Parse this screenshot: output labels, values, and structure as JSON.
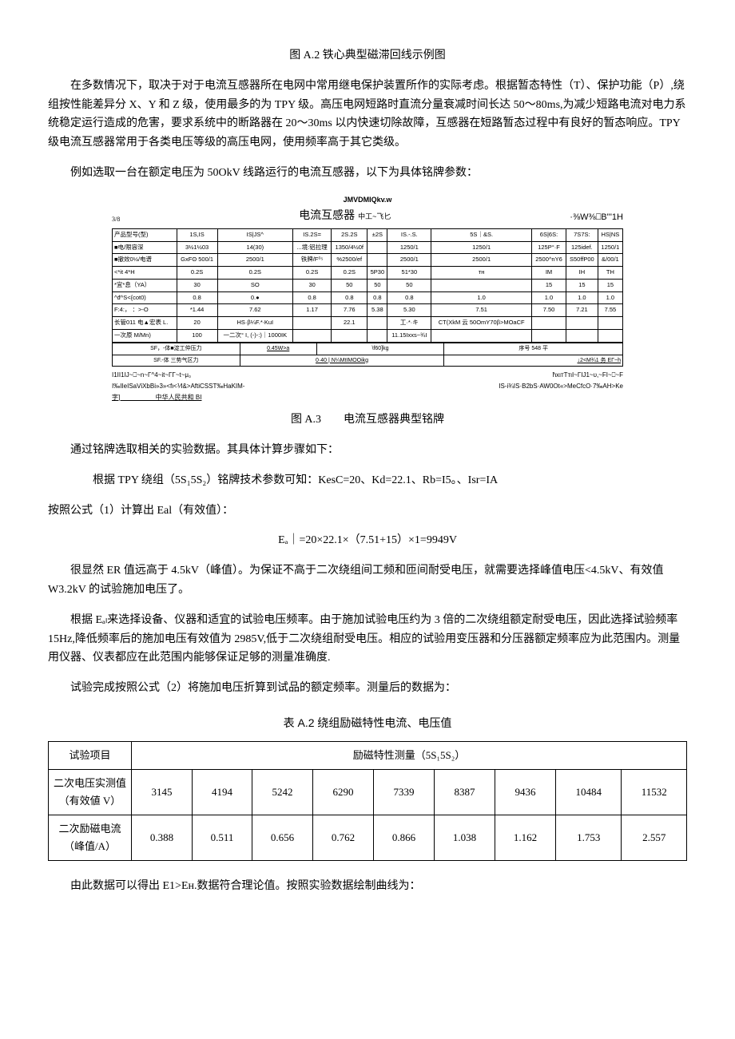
{
  "fig_a2_caption": "图 A.2 铁心典型磁滞回线示例图",
  "para1": "在多数情况下，取决于对于电流互感器所在电网中常用继电保护装置所作的实际考虑。根据暂态特性（T）、保护功能（P）,绕组按性能差异分 X、Y 和 Z 级，使用最多的为 TPY 级。高压电网短路时直流分量衰减时间长达 50～80ms,为减少短路电流对电力系统稳定运行造成的危害，要求系统中的断路器在 20～30ms 以内快速切除故障，互感器在短路暂态过程中有良好的暂态响应。TPY 级电流互感器常用于各类电压等级的高压电网，使用频率高于其它类级。",
  "para2": "例如选取一台在额定电压为 50OkV 线路运行的电流互感器，以下为具体铭牌参数：",
  "nameplate": {
    "top_left": "JMVDMIQkv.w",
    "three_eighths": "3/8",
    "title": "电流互感器",
    "title_suffix": "中工~飞匕",
    "right_code": "·⅜W⅜⎕B'''1H",
    "rows": [
      [
        "产品型号(型)",
        "1S,IS",
        "IS|JS^",
        "IS.2S=",
        "2S.2S",
        "±2S",
        "IS.-.S.",
        "5S｜&S.",
        "6S|6S:",
        "7S7S:",
        "HS|NS"
      ],
      [
        "■电/限容深",
        "3½1½03",
        "14(30)",
        "...境:铝拉理",
        "1350/4½0f",
        "",
        "1250/1",
        "1250/1",
        "125P°·F",
        "125idef.",
        "1250/1"
      ],
      [
        "■撤效0½/电谱",
        "GxFʘ 500/1",
        "2500/1",
        "铁牌/F⁰⁵",
        "%2500/ef",
        "",
        "2500/1",
        "2500/1",
        "2500^nY6",
        "S50ffP00",
        "&/00/1"
      ],
      [
        "<*it   4*H",
        "0.2S",
        "0.2S",
        "0.2S",
        "0.2S",
        "5P30",
        "51*30",
        "тн",
        "IM",
        "IH",
        "TH"
      ],
      [
        "*宜*息（YA）",
        "30",
        "SO",
        "30",
        "50",
        "50",
        "50",
        "",
        "15",
        "15",
        "15"
      ],
      [
        "^đ^S<{cot0)",
        "0.8",
        "0.●",
        "0.8",
        "0.8",
        "0.8",
        "0.8",
        "1.0",
        "1.0",
        "1.0",
        "1.0"
      ],
      [
        "F:4:， ：>-O",
        "*1.44",
        "7.62",
        "1.17",
        "7.76",
        "5.38",
        "5.30",
        "7.51",
        "7.50",
        "7.21",
        "7.55"
      ],
      [
        "长管011 电▲宏表 L.",
        "20",
        "HS·β¼F.*∙KuI",
        "",
        "22.1",
        "",
        "工·*·キ",
        "CT(XkM 云 50OmY70β>MOaCF",
        "",
        "",
        ""
      ],
      [
        "一次原 M/Mn)",
        "100",
        "一二次° I, (-)-:)｜1000IK",
        "",
        "",
        "",
        "11.15Ixxs~¾I",
        "",
        "",
        "",
        ""
      ]
    ],
    "subrow1_left": "SF，-体■淀工仲压力",
    "subrow1_mid": "0.45W>a",
    "subrow1_mid2": "\\f60]kg",
    "subrow1_right": "序号 548 平",
    "subrow2_left": "SF.-体 三势气区力",
    "subrow2_mid": "0·40 | N¼MtIMOOikg",
    "subrow2_right": "↓2<M¾1 务 EΓ~h",
    "footer1_left": "I1II1IJ~⎕~n~Γ^4~it~ΓΓ~t~μ。",
    "footer1_right": "ħxιтTтιI~ΓIJ1~υ,~FI~⎕~F",
    "footer2_left": "I‰IIeISaViXbBi»3»<fι<⅟I&>AftiCSST‰HaKIM-",
    "footer2_right": "IS-i¾IS·B2bS·AW0Ot«>MeCfcO·7‰AH>Ke",
    "footer3": "字]                    中华人民共和 BI"
  },
  "fig_a3_caption": "图 A.3　　电流互感器典型铭牌",
  "para3": "通过铭牌选取相关的实验数据。其具体计算步骤如下：",
  "para4": "根据 TPY 绕组（5S₁5S₂）铭牌技术参数可知：KesC=20、Kd=22.1、Rb=I5。、Isr=IA",
  "para5": "按照公式（1）计算出 Eal（有效值）：",
  "formula1": "Eₐ｜=20×22.1×（7.51+15）×1=9949V",
  "para6": "很显然 ER 值远高于 4.5kV（峰值）。为保证不高于二次绕组间工频和匝间耐受电压，就需要选择峰值电压<4.5kV、有效值 W3.2kV 的试验施加电压了。",
  "para7": "根据 Eₐₗ来选择设备、仪器和适宜的试验电压频率。由于施加试验电压约为 3 倍的二次绕组额定耐受电压，因此选择试验频率 15Hz,降低频率后的施加电压有效值为 2985V,低于二次绕组耐受电压。相应的试验用变压器和分压器额定频率应为此范围内。测量用仪器、仪表都应在此范围内能够保证足够的测量准确度.",
  "para8": "试验完成按照公式（2）将施加电压折算到试品的额定频率。测量后的数据为：",
  "table_a2": {
    "title": "表 A.2 绕组励磁特性电流、电压值",
    "col0": "试验项目",
    "col_span_header": "励磁特性测量（5S₁5S₂）",
    "rows": [
      {
        "label": "二次电压实测值（有效値 V）",
        "vals": [
          "3145",
          "4194",
          "5242",
          "6290",
          "7339",
          "8387",
          "9436",
          "10484",
          "11532"
        ]
      },
      {
        "label": "二次励磁电流（峰值/A）",
        "vals": [
          "0.388",
          "0.511",
          "0.656",
          "0.762",
          "0.866",
          "1.038",
          "1.162",
          "1.753",
          "2.557"
        ]
      }
    ]
  },
  "para9": "由此数据可以得出 E1>Eн.数据符合理论值。按照实验数据绘制曲线为："
}
